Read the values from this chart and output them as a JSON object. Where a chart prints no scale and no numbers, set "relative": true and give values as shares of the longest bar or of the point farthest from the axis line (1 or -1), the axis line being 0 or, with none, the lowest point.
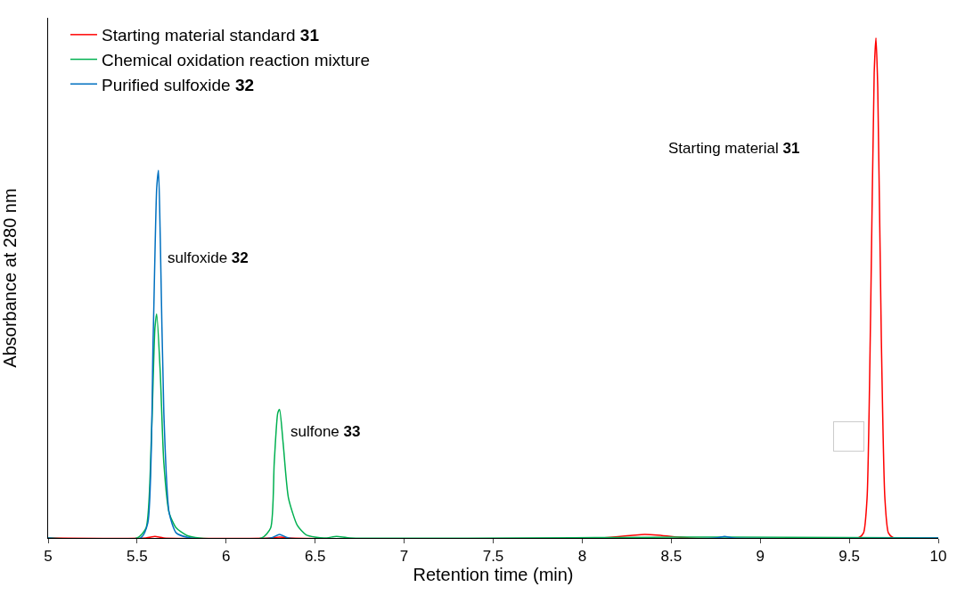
{
  "chart_data": {
    "type": "line",
    "relative": true,
    "xlabel": "Retention time (min)",
    "ylabel": "Absorbance at 280 nm",
    "xlim": [
      5,
      10
    ],
    "xticks": [
      5,
      5.5,
      6,
      6.5,
      7,
      7.5,
      8,
      8.5,
      9,
      9.5,
      10
    ],
    "grid": false,
    "legend": "top left",
    "marker": "none",
    "line_style": "solid",
    "series": [
      {
        "name": "Starting material standard 31",
        "color": "#ff0000",
        "x": [
          5,
          5.55,
          5.6,
          5.65,
          6.25,
          6.3,
          6.35,
          8.1,
          8.3,
          8.35,
          8.42,
          8.6,
          9.55,
          9.58,
          9.6,
          9.62,
          9.64,
          9.65,
          9.66,
          9.68,
          9.7,
          9.72,
          9.75,
          10
        ],
        "values": [
          0,
          0,
          0.003,
          0,
          0,
          0.002,
          0,
          0,
          0.006,
          0.007,
          0.006,
          0,
          0,
          0.01,
          0.08,
          0.45,
          0.93,
          1,
          0.9,
          0.4,
          0.08,
          0.01,
          0,
          0
        ]
      },
      {
        "name": "Chemical oxidation reaction mixture",
        "color": "#00b050",
        "x": [
          5,
          5.5,
          5.55,
          5.58,
          5.6,
          5.61,
          5.63,
          5.65,
          5.68,
          5.72,
          5.78,
          5.85,
          6.2,
          6.25,
          6.27,
          6.29,
          6.3,
          6.32,
          6.35,
          6.4,
          6.45,
          6.55,
          6.62,
          6.7,
          8.8,
          10
        ],
        "values": [
          0,
          0,
          0.02,
          0.2,
          0.42,
          0.448,
          0.33,
          0.15,
          0.05,
          0.02,
          0.005,
          0,
          0,
          0.02,
          0.15,
          0.25,
          0.257,
          0.19,
          0.08,
          0.025,
          0.006,
          0,
          0.003,
          0,
          0.002,
          0
        ]
      },
      {
        "name": "Purified sulfoxide 32",
        "color": "#0070c0",
        "x": [
          5,
          5.52,
          5.56,
          5.59,
          5.61,
          5.62,
          5.63,
          5.65,
          5.68,
          5.72,
          5.8,
          6.25,
          6.3,
          6.35,
          8.75,
          8.8,
          8.85,
          10
        ],
        "values": [
          0,
          0,
          0.03,
          0.4,
          0.7,
          0.735,
          0.6,
          0.25,
          0.05,
          0.01,
          0,
          0,
          0.007,
          0,
          0,
          0.003,
          0,
          0
        ]
      }
    ],
    "annotations": [
      "sulfoxide 32",
      "sulfone 33",
      "Starting material 31"
    ]
  }
}
